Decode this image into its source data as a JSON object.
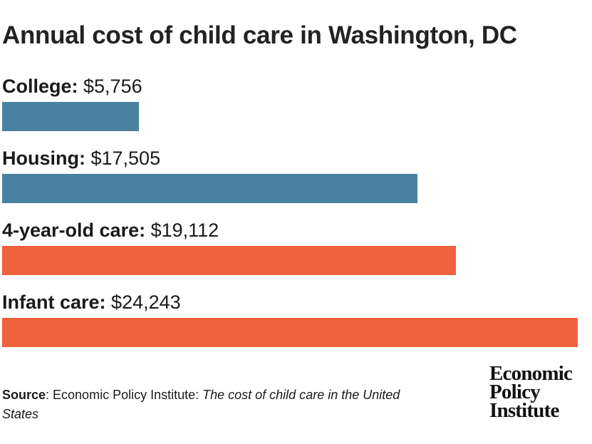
{
  "chart_data": {
    "type": "bar",
    "orientation": "horizontal",
    "title": "Annual cost of child care in Washington, DC",
    "categories": [
      "College",
      "Housing",
      "4-year-old care",
      "Infant care"
    ],
    "values": [
      5756,
      17505,
      19112,
      24243
    ],
    "value_labels": [
      "$5,756",
      "$17,505",
      "$19,112",
      "$24,243"
    ],
    "colors": [
      "#4a819e",
      "#4a819e",
      "#f0623d",
      "#f0623d"
    ],
    "xlim": [
      0,
      24243
    ],
    "grid": false,
    "axes_shown": false
  },
  "source": {
    "label": "Source",
    "text": ": Economic Policy Institute: ",
    "title": "The cost of child care in the United States"
  },
  "logo": {
    "line1": "Economic",
    "line2": "Policy",
    "line3": "Institute"
  }
}
